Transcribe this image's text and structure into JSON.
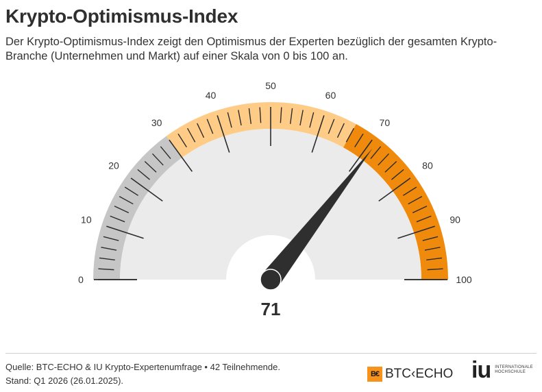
{
  "chart_data": {
    "type": "gauge",
    "title": "Krypto-Optimismus-Index",
    "subtitle": "Der Krypto-Optimismus-Index zeigt den Optimismus der Experten bezüglich der gesamten Krypto-Branche (Unternehmen und Markt) auf einer Skala von 0 bis 100 an.",
    "value": 71,
    "value_label": "71",
    "range": [
      0,
      100
    ],
    "tick_labels": [
      "0",
      "10",
      "20",
      "30",
      "40",
      "50",
      "60",
      "70",
      "80",
      "90",
      "100"
    ],
    "bands": [
      {
        "from": 0,
        "to": 30,
        "color": "#c6c6c6"
      },
      {
        "from": 30,
        "to": 66,
        "color": "#ffcc88"
      },
      {
        "from": 66,
        "to": 100,
        "color": "#f08a0c"
      }
    ]
  },
  "colors": {
    "needle": "#2f2f2f",
    "face": "#ebebeb",
    "hub_cutout": "#ffffff",
    "ticks": "#2b2b2b",
    "accent_orange": "#f08a0c"
  },
  "footer": {
    "source": "Quelle: BTC-ECHO & IU Krypto-Expertenumfrage • 42 Teilnehmende.",
    "date": "Stand: Q1 2026 (26.01.2025)."
  },
  "logos": {
    "btc_mark": "B€",
    "btc_text": "BTC‹ECHO",
    "iu_letters": "iu",
    "iu_line1": "INTERNATIONALE",
    "iu_line2": "HOCHSCHULE"
  }
}
